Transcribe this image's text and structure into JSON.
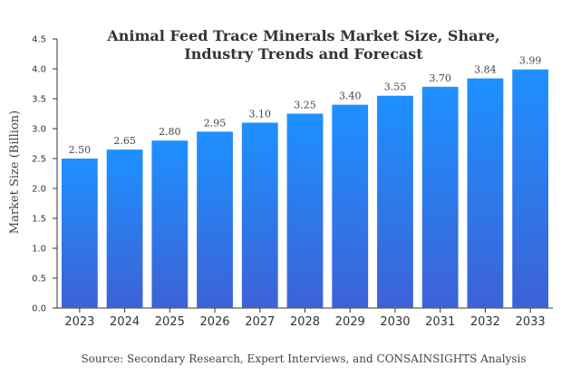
{
  "chart_data": {
    "type": "bar",
    "title_line1": "Animal Feed Trace Minerals Market Size, Share,",
    "title_line2": "Industry Trends and Forecast",
    "xlabel": "",
    "ylabel": "Market Size (Billion)",
    "categories": [
      "2023",
      "2024",
      "2025",
      "2026",
      "2027",
      "2028",
      "2029",
      "2030",
      "2031",
      "2032",
      "2033"
    ],
    "values": [
      2.5,
      2.65,
      2.8,
      2.95,
      3.1,
      3.25,
      3.4,
      3.55,
      3.7,
      3.84,
      3.99
    ],
    "data_labels": [
      "2.50",
      "2.65",
      "2.80",
      "2.95",
      "3.10",
      "3.25",
      "3.40",
      "3.55",
      "3.70",
      "3.84",
      "3.99"
    ],
    "ylim": [
      0,
      4.5
    ],
    "yticks": [
      "0.0",
      "0.5",
      "1.0",
      "1.5",
      "2.0",
      "2.5",
      "3.0",
      "3.5",
      "4.0",
      "4.5"
    ],
    "grid": false,
    "legend": "none",
    "bar_color_top": "#1e90ff",
    "bar_color_bottom": "#3d62d6",
    "source": "Source: Secondary Research, Expert Interviews, and CONSAINSIGHTS Analysis"
  }
}
